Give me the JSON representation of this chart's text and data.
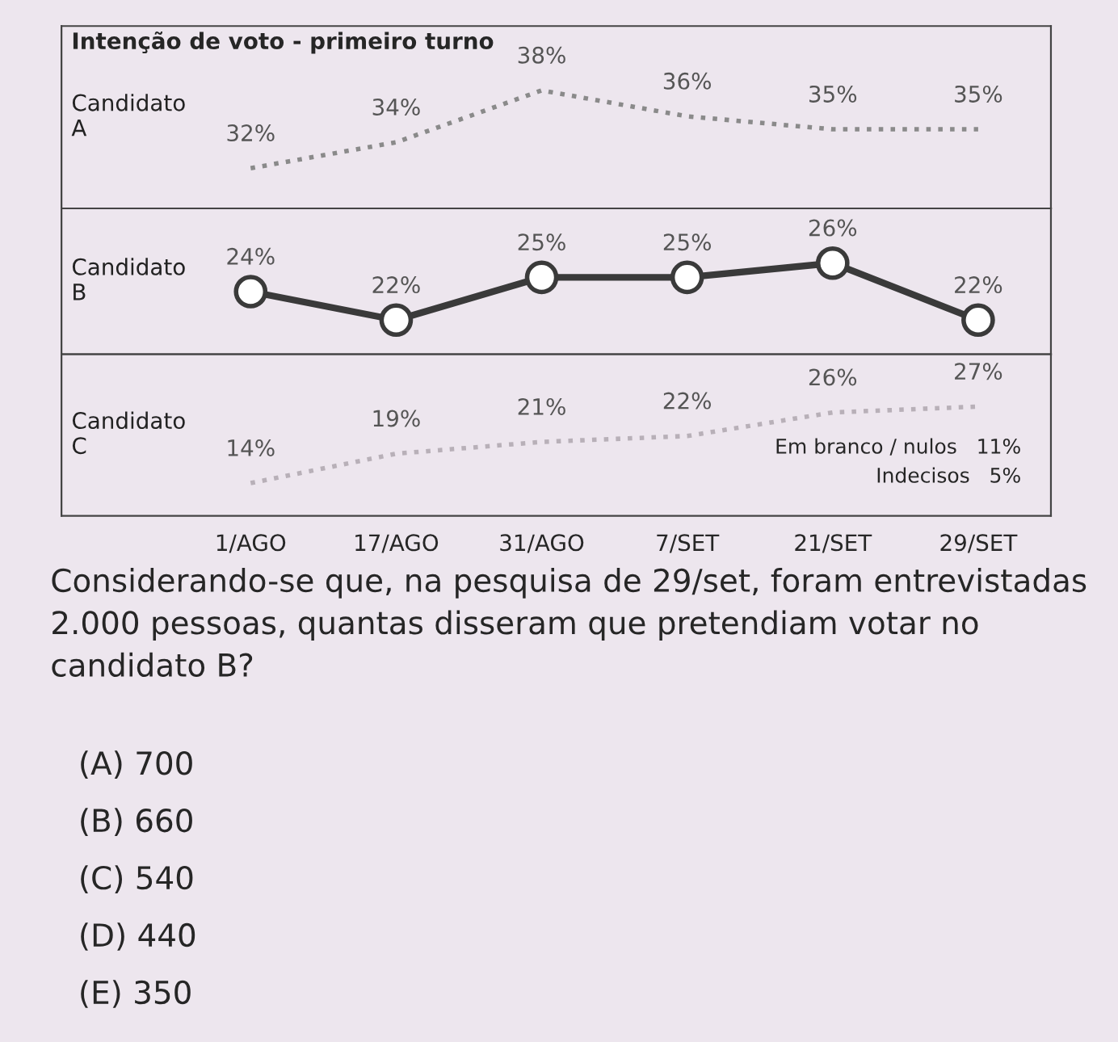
{
  "chart_data": [
    {
      "type": "line",
      "title": "Intenção de voto - primeiro turno",
      "tick_labels": false,
      "legend": false,
      "grid": false,
      "series": [
        {
          "name": "Candidato\nA",
          "color": "#8a8a8a",
          "marker": "none",
          "line_style": "dotted",
          "values": [
            32,
            34,
            38,
            36,
            35,
            35
          ],
          "value_labels": [
            "32%",
            "34%",
            "38%",
            "36%",
            "35%",
            "35%"
          ]
        }
      ]
    },
    {
      "type": "line",
      "tick_labels": false,
      "legend": false,
      "grid": false,
      "series": [
        {
          "name": "Candidato\nB",
          "color": "#3a3a3a",
          "marker": "circle",
          "line_style": "solid",
          "values": [
            24,
            22,
            25,
            25,
            26,
            22
          ],
          "value_labels": [
            "24%",
            "22%",
            "25%",
            "25%",
            "26%",
            "22%"
          ]
        }
      ]
    },
    {
      "type": "line",
      "categories": [
        "1/AGO",
        "17/AGO",
        "31/AGO",
        "7/SET",
        "21/SET",
        "29/SET"
      ],
      "tick_labels": "x",
      "legend": false,
      "grid": false,
      "series": [
        {
          "name": "Candidato\nC",
          "color": "#b8b0b8",
          "marker": "none",
          "line_style": "dotted",
          "values": [
            14,
            19,
            21,
            22,
            26,
            27
          ],
          "value_labels": [
            "14%",
            "19%",
            "21%",
            "22%",
            "26%",
            "27%"
          ]
        }
      ],
      "annotations": [
        "Em branco / nulos   11%",
        "Indecisos   5%",
        "Considerando-se que, na pesquisa de 29/set, foram entrevistadas 2.000 pessoas, quantas disseram que pretendiam votar no candidato B?",
        "(A) 700",
        "(B) 660",
        "(C) 540",
        "(D) 440",
        "(E) 350"
      ]
    }
  ]
}
